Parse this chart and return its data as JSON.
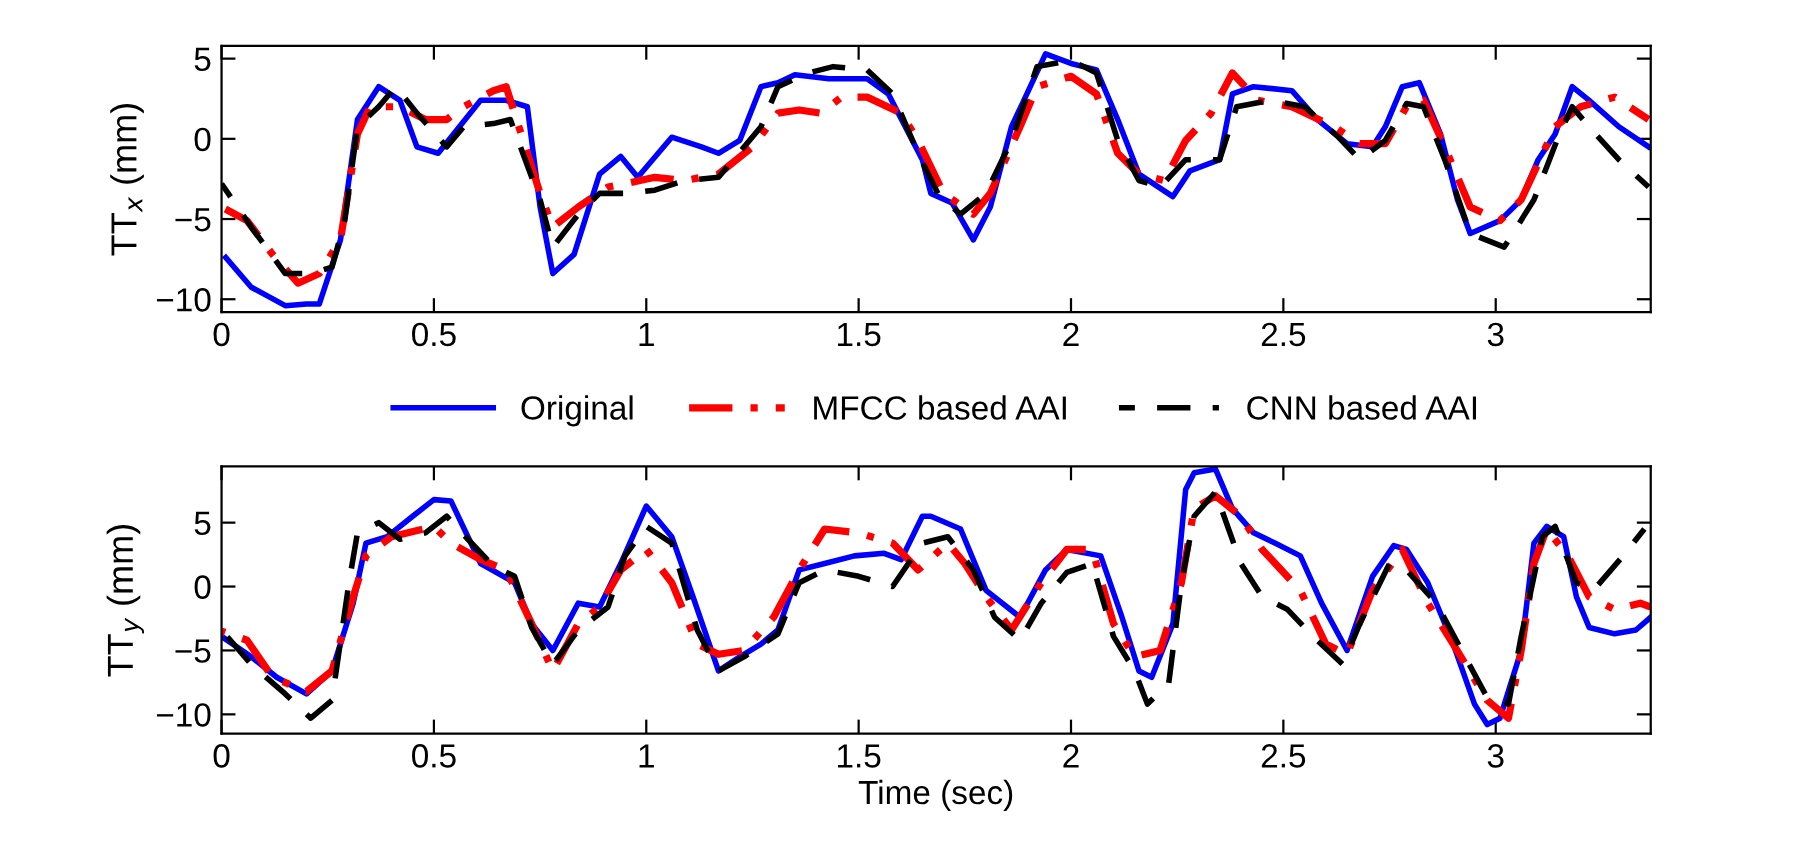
{
  "chart_data": [
    {
      "type": "line",
      "ylabel": "TT$_{x}$ (mm)",
      "xlim": [
        0,
        3.365
      ],
      "ylim": [
        -10.8,
        5.8
      ],
      "xticks": [
        0,
        0.5,
        1,
        1.5,
        2,
        2.5,
        3
      ],
      "yticks": [
        -10,
        -5,
        0,
        5
      ],
      "legend": "bottom",
      "grid": false,
      "series": [
        {
          "name": "Original",
          "color": "#0000ff",
          "line_style": "solid",
          "x": [
            0.01,
            0.07,
            0.15,
            0.2,
            0.23,
            0.28,
            0.32,
            0.37,
            0.42,
            0.46,
            0.51,
            0.56,
            0.61,
            0.67,
            0.72,
            0.75,
            0.78,
            0.83,
            0.89,
            0.94,
            0.98,
            1.06,
            1.13,
            1.17,
            1.22,
            1.27,
            1.31,
            1.35,
            1.43,
            1.52,
            1.57,
            1.65,
            1.67,
            1.72,
            1.77,
            1.81,
            1.86,
            1.94,
            2.0,
            2.06,
            2.11,
            2.16,
            2.24,
            2.28,
            2.35,
            2.38,
            2.43,
            2.52,
            2.58,
            2.65,
            2.71,
            2.74,
            2.78,
            2.82,
            2.87,
            2.91,
            2.94,
            3.01,
            3.06,
            3.1,
            3.14,
            3.18,
            3.22,
            3.29,
            3.36
          ],
          "values": [
            -7.4,
            -9.25,
            -10.4,
            -10.3,
            -10.3,
            -6.3,
            1.2,
            3.25,
            2.4,
            -0.5,
            -0.9,
            0.75,
            2.4,
            2.4,
            2,
            -4.25,
            -8.4,
            -7.2,
            -2.2,
            -1.1,
            -2.4,
            0.1,
            -0.5,
            -0.9,
            -0.1,
            3.25,
            3.5,
            4,
            3.75,
            3.75,
            2.8,
            -1.3,
            -3.4,
            -4,
            -6.3,
            -4.25,
            0.75,
            5.3,
            4.7,
            4.3,
            1.2,
            -2.2,
            -3.6,
            -2,
            -1.3,
            2.8,
            3.25,
            3,
            1.2,
            -0.3,
            -0.5,
            0.75,
            3.25,
            3.5,
            0.3,
            -3.8,
            -5.9,
            -5.1,
            -3.8,
            -1.3,
            0.3,
            3.25,
            2.4,
            0.75,
            -0.5
          ]
        },
        {
          "name": "MFCC based AAI",
          "color": "#ff0000",
          "line_style": "dashdot",
          "x": [
            0,
            0.06,
            0.12,
            0.18,
            0.23,
            0.28,
            0.32,
            0.35,
            0.42,
            0.48,
            0.53,
            0.57,
            0.64,
            0.67,
            0.72,
            0.75,
            0.78,
            0.84,
            0.91,
            0.95,
            1.02,
            1.09,
            1.17,
            1.25,
            1.31,
            1.36,
            1.41,
            1.46,
            1.52,
            1.6,
            1.64,
            1.7,
            1.77,
            1.81,
            1.88,
            1.92,
            2.0,
            2.06,
            2.11,
            2.16,
            2.22,
            2.27,
            2.33,
            2.38,
            2.44,
            2.52,
            2.62,
            2.68,
            2.74,
            2.79,
            2.83,
            2.88,
            2.94,
            3.01,
            3.06,
            3.14,
            3.2,
            3.28,
            3.36
          ],
          "values": [
            -4.25,
            -5.1,
            -7.2,
            -9,
            -8.4,
            -6.3,
            0.3,
            2,
            2,
            1.2,
            1.2,
            2,
            3,
            3.25,
            -0.9,
            -3.4,
            -5.5,
            -4.25,
            -3,
            -2.8,
            -2.4,
            -2.6,
            -2.2,
            -0.5,
            1.6,
            1.8,
            1.6,
            2.6,
            2.6,
            1.6,
            -0.1,
            -3.4,
            -4.7,
            -3.4,
            0.75,
            3.25,
            3.9,
            2.8,
            -0.9,
            -2.2,
            -2.6,
            -0.1,
            1.6,
            4.1,
            2.4,
            2,
            0.75,
            -0.3,
            -0.3,
            2,
            2.4,
            -0.5,
            -4.25,
            -5.1,
            -3.8,
            0.75,
            2,
            2.6,
            1.2
          ]
        },
        {
          "name": "CNN based AAI",
          "color": "#000000",
          "line_style": "dashed",
          "x": [
            0,
            0.07,
            0.15,
            0.21,
            0.26,
            0.29,
            0.32,
            0.37,
            0.41,
            0.46,
            0.53,
            0.57,
            0.64,
            0.68,
            0.75,
            0.78,
            0.84,
            0.89,
            0.95,
            1.02,
            1.09,
            1.17,
            1.27,
            1.31,
            1.38,
            1.44,
            1.52,
            1.58,
            1.64,
            1.69,
            1.74,
            1.8,
            1.86,
            1.92,
            2.0,
            2.06,
            2.11,
            2.16,
            2.21,
            2.27,
            2.35,
            2.39,
            2.47,
            2.55,
            2.63,
            2.68,
            2.74,
            2.79,
            2.83,
            2.88,
            2.94,
            3.02,
            3.09,
            3.15,
            3.18,
            3.22,
            3.29,
            3.36
          ],
          "values": [
            -2.8,
            -5.5,
            -8.4,
            -8.4,
            -8,
            -5.1,
            0.75,
            2,
            3.25,
            1.6,
            -0.5,
            0.75,
            0.95,
            1.2,
            -3.8,
            -6.75,
            -4.7,
            -3.4,
            -3.4,
            -3.2,
            -2.6,
            -2.4,
            0.75,
            3.25,
            4.1,
            4.5,
            4.3,
            2.8,
            -0.9,
            -3.6,
            -4.7,
            -3.4,
            -0.1,
            4.5,
            4.9,
            4.1,
            -0.1,
            -2.6,
            -3,
            -1.3,
            -1.3,
            2,
            2.4,
            2,
            0.1,
            -1.3,
            -0.1,
            2.2,
            2,
            -1.3,
            -5.9,
            -6.75,
            -3.8,
            0.3,
            2,
            0.75,
            -1.3,
            -3
          ]
        }
      ]
    },
    {
      "type": "line",
      "ylabel": "TT$_{y}$ (mm)",
      "xlabel": "Time (sec)",
      "xlim": [
        0,
        3.365
      ],
      "ylim": [
        -11.5,
        9.4
      ],
      "xticks": [
        0,
        0.5,
        1,
        1.5,
        2,
        2.5,
        3
      ],
      "yticks": [
        -10,
        -5,
        0,
        5
      ],
      "grid": false,
      "series": [
        {
          "color": "#0000ff",
          "line_style": "solid",
          "x": [
            0,
            0.07,
            0.13,
            0.2,
            0.26,
            0.31,
            0.34,
            0.39,
            0.45,
            0.5,
            0.54,
            0.61,
            0.69,
            0.73,
            0.78,
            0.84,
            0.89,
            0.94,
            1,
            1.06,
            1.11,
            1.17,
            1.22,
            1.27,
            1.31,
            1.36,
            1.42,
            1.49,
            1.56,
            1.6,
            1.65,
            1.67,
            1.74,
            1.8,
            1.88,
            1.94,
            1.99,
            2.07,
            2.12,
            2.16,
            2.19,
            2.24,
            2.27,
            2.29,
            2.34,
            2.38,
            2.43,
            2.48,
            2.54,
            2.59,
            2.65,
            2.71,
            2.76,
            2.79,
            2.84,
            2.9,
            2.95,
            2.98,
            3.01,
            3.06,
            3.09,
            3.12,
            3.16,
            3.19,
            3.22,
            3.28,
            3.33,
            3.365
          ],
          "values": [
            -3.9,
            -5.5,
            -7.1,
            -8.4,
            -6.6,
            -1.3,
            3.4,
            3.9,
            5.5,
            6.8,
            6.7,
            1.8,
            0.3,
            -2.9,
            -5,
            -1.3,
            -1.6,
            1.8,
            6.3,
            3.9,
            -0.8,
            -6.6,
            -5.5,
            -4.5,
            -3.4,
            1.3,
            1.8,
            2.4,
            2.6,
            2.1,
            5.5,
            5.5,
            4.5,
            -0.3,
            -2.4,
            1.3,
            2.9,
            2.4,
            -2.4,
            -6.6,
            -7.1,
            -2.9,
            7.6,
            8.9,
            9.2,
            6.1,
            4.2,
            3.4,
            2.4,
            -1.3,
            -5,
            0.8,
            3.2,
            2.9,
            0.3,
            -4.5,
            -9.2,
            -10.8,
            -10.3,
            -5,
            3.4,
            4.7,
            3.9,
            -0.8,
            -3.2,
            -3.7,
            -3.4,
            -2.4
          ]
        },
        {
          "color": "#ff0000",
          "line_style": "dashdot",
          "x": [
            0,
            0.06,
            0.12,
            0.2,
            0.26,
            0.31,
            0.34,
            0.4,
            0.5,
            0.54,
            0.61,
            0.67,
            0.73,
            0.78,
            0.84,
            0.89,
            0.94,
            1,
            1.06,
            1.12,
            1.17,
            1.23,
            1.3,
            1.36,
            1.42,
            1.5,
            1.58,
            1.64,
            1.71,
            1.75,
            1.8,
            1.86,
            1.93,
            1.99,
            2.05,
            2.1,
            2.15,
            2.21,
            2.26,
            2.29,
            2.34,
            2.4,
            2.45,
            2.54,
            2.6,
            2.65,
            2.71,
            2.78,
            2.84,
            2.9,
            2.98,
            3.03,
            3.06,
            3.09,
            3.12,
            3.17,
            3.22,
            3.28,
            3.34,
            3.365
          ],
          "values": [
            -3.5,
            -4.2,
            -7.1,
            -8.2,
            -6.6,
            -0.8,
            2.4,
            3.9,
            4.7,
            3.4,
            2.1,
            1.3,
            -2.9,
            -6.6,
            -2.9,
            -1.6,
            1.3,
            2.9,
            0.3,
            -4.5,
            -5.3,
            -5,
            -2.4,
            1.3,
            4.5,
            4.2,
            3.4,
            1.3,
            3.4,
            1.8,
            -0.8,
            -3.4,
            0.3,
            2.9,
            2.9,
            -2.9,
            -5.5,
            -5,
            0.3,
            6.1,
            7.1,
            5.5,
            2.9,
            -0.3,
            -4.5,
            -5.3,
            -0.3,
            2.9,
            -1.3,
            -4.5,
            -8.9,
            -10.3,
            -5,
            1.8,
            4.5,
            2.4,
            -0.8,
            -1.8,
            -1.3,
            -1.6
          ]
        },
        {
          "color": "#000000",
          "line_style": "dashed",
          "x": [
            0,
            0.07,
            0.15,
            0.21,
            0.26,
            0.3,
            0.32,
            0.37,
            0.42,
            0.48,
            0.53,
            0.58,
            0.64,
            0.69,
            0.73,
            0.78,
            0.84,
            0.91,
            0.95,
            1,
            1.06,
            1.12,
            1.17,
            1.23,
            1.31,
            1.36,
            1.42,
            1.5,
            1.58,
            1.65,
            1.71,
            1.77,
            1.82,
            1.88,
            1.93,
            1.99,
            2.05,
            2.1,
            2.15,
            2.18,
            2.23,
            2.26,
            2.29,
            2.34,
            2.4,
            2.45,
            2.51,
            2.57,
            2.64,
            2.68,
            2.75,
            2.79,
            2.86,
            2.92,
            2.98,
            3.03,
            3.06,
            3.11,
            3.14,
            3.19,
            3.23,
            3.3,
            3.35
          ],
          "values": [
            -3.4,
            -6.1,
            -8.4,
            -10.3,
            -8.9,
            0.3,
            4.2,
            5,
            3.7,
            4.2,
            5.5,
            3.7,
            1.6,
            0.8,
            -3.2,
            -6.1,
            -3.4,
            -1.6,
            2.4,
            4.7,
            3.4,
            -3.4,
            -6.6,
            -5.5,
            -3.7,
            0.3,
            1.3,
            0.8,
            0,
            3.4,
            3.9,
            1.3,
            -2.4,
            -4.2,
            -1.3,
            1.1,
            1.8,
            -3.9,
            -6.6,
            -9.2,
            -7.6,
            0.3,
            5.5,
            7.4,
            1.8,
            -0.8,
            -1.8,
            -3.9,
            -6.1,
            -2.9,
            1.8,
            1.3,
            -1.3,
            -5,
            -8.7,
            -9.2,
            -3.9,
            3.9,
            4.7,
            0.3,
            -0.3,
            2.4,
            4.5
          ]
        }
      ]
    }
  ]
}
